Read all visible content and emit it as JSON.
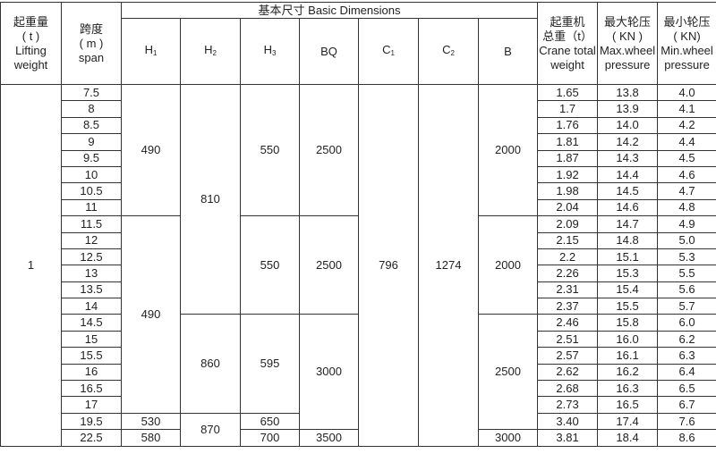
{
  "header": {
    "lifting_weight": [
      "起重量",
      "( t )",
      "Lifting",
      "weight"
    ],
    "span": [
      "跨度",
      "( m )",
      "span"
    ],
    "basic_dimensions": "基本尺寸 Basic Dimensions",
    "dims": [
      {
        "base": "H",
        "sub": "1"
      },
      {
        "base": "H",
        "sub": "2"
      },
      {
        "base": "H",
        "sub": "3"
      },
      {
        "base": "BQ",
        "sub": ""
      },
      {
        "base": "C",
        "sub": "1"
      },
      {
        "base": "C",
        "sub": "2"
      },
      {
        "base": "B",
        "sub": ""
      }
    ],
    "crane_total_weight": [
      "起重机",
      "总重（t）",
      "Crane total",
      "weight"
    ],
    "max_wheel_pressure": [
      "最大轮压",
      "( KN )",
      "Max.wheel",
      "pressure"
    ],
    "min_wheel_pressure": [
      "最小轮压",
      "( KN)",
      "Min.wheel",
      "pressure"
    ]
  },
  "columns": {
    "lifting_weight": [
      {
        "value": "1",
        "span": 22
      }
    ],
    "span": [
      "7.5",
      "8",
      "8.5",
      "9",
      "9.5",
      "10",
      "10.5",
      "11",
      "11.5",
      "12",
      "12.5",
      "13",
      "13.5",
      "14",
      "14.5",
      "15",
      "15.5",
      "16",
      "16.5",
      "17",
      "19.5",
      "22.5"
    ],
    "h1": [
      {
        "value": "490",
        "span": 8
      },
      {
        "value": "490",
        "span": 12
      },
      {
        "value": "530",
        "span": 1
      },
      {
        "value": "580",
        "span": 1
      }
    ],
    "h2": [
      {
        "value": "810",
        "span": 14
      },
      {
        "value": "860",
        "span": 6
      },
      {
        "value": "870",
        "span": 2
      }
    ],
    "h3": [
      {
        "value": "550",
        "span": 8
      },
      {
        "value": "550",
        "span": 6
      },
      {
        "value": "595",
        "span": 6
      },
      {
        "value": "650",
        "span": 1
      },
      {
        "value": "700",
        "span": 1
      }
    ],
    "bq": [
      {
        "value": "2500",
        "span": 8
      },
      {
        "value": "2500",
        "span": 6
      },
      {
        "value": "3000",
        "span": 7
      },
      {
        "value": "3500",
        "span": 1
      }
    ],
    "c1": [
      {
        "value": "796",
        "span": 22
      }
    ],
    "c2": [
      {
        "value": "1274",
        "span": 22
      }
    ],
    "b": [
      {
        "value": "2000",
        "span": 8
      },
      {
        "value": "2000",
        "span": 6
      },
      {
        "value": "2500",
        "span": 7
      },
      {
        "value": "3000",
        "span": 1
      }
    ],
    "crane_total_weight": [
      "1.65",
      "1.7",
      "1.76",
      "1.81",
      "1.87",
      "1.92",
      "1.98",
      "2.04",
      "2.09",
      "2.15",
      "2.2",
      "2.26",
      "2.31",
      "2.37",
      "2.46",
      "2.51",
      "2.57",
      "2.62",
      "2.68",
      "2.73",
      "3.40",
      "3.81"
    ],
    "max_wheel_pressure": [
      "13.8",
      "13.9",
      "14.0",
      "14.2",
      "14.3",
      "14.4",
      "14.5",
      "14.6",
      "14.7",
      "14.8",
      "15.1",
      "15.3",
      "15.4",
      "15.5",
      "15.8",
      "16.0",
      "16.1",
      "16.2",
      "16.3",
      "16.5",
      "17.4",
      "18.4"
    ],
    "min_wheel_pressure": [
      "4.0",
      "4.1",
      "4.2",
      "4.4",
      "4.5",
      "4.6",
      "4.7",
      "4.8",
      "4.9",
      "5.0",
      "5.3",
      "5.5",
      "5.6",
      "5.7",
      "6.0",
      "6.2",
      "6.3",
      "6.4",
      "6.5",
      "6.7",
      "7.6",
      "8.6"
    ]
  }
}
